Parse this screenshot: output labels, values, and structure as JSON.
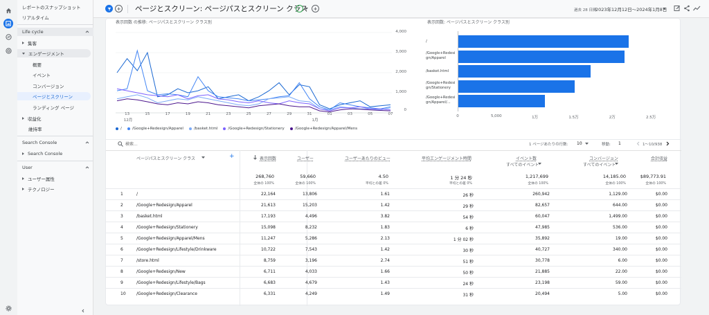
{
  "nav": {
    "top_items": [
      "レポートのスナップショット",
      "リアルタイム"
    ],
    "lifecycle_label": "Life cycle",
    "acquisition": "集客",
    "engagement": "エンゲージメント",
    "engagement_children": [
      "概要",
      "イベント",
      "コンバージョン",
      "ページとスクリーン",
      "ランディング ページ"
    ],
    "monetization": "収益化",
    "retention": "維持率",
    "search_console_section": "Search Console",
    "search_console_item": "Search Console",
    "user_section": "User",
    "user_attributes": "ユーザー属性",
    "technology": "テクノロジー"
  },
  "header": {
    "title": "ページとスクリーン: ページパスとスクリーン クラス",
    "date_prefix": "過去 28 日間",
    "date_range": "2023年12月12日～2024年1月8日"
  },
  "line_chart": {
    "title": "表示回数 の推移: ページパスとスクリーン クラス別",
    "y_ticks": [
      "4,000",
      "3,000",
      "2,000",
      "1,000",
      "0"
    ],
    "x_ticks": [
      "13",
      "15",
      "17",
      "19",
      "21",
      "23",
      "25",
      "27",
      "29",
      "31",
      "01",
      "03",
      "05",
      "07"
    ],
    "x_month_labels": [
      "12月",
      "1月"
    ],
    "legend": [
      "/",
      "/Google+Redesign/Apparel",
      "/basket.html",
      "/Google+Redesign/Stationery",
      "/Google+Redesign/Apparel/Mens"
    ],
    "colors": [
      "#1967d2",
      "#4285f4",
      "#7baaf7",
      "#7b61ff",
      "#4a148c"
    ]
  },
  "bar_chart": {
    "title": "表示回数: ページパスとスクリーン クラス別",
    "labels": [
      "/",
      "/Google+Redesi gn/Apparel",
      "/basket.html",
      "/Google+Redesi gn/Stationery",
      "/Google+Redesi gn/Apparel/..."
    ],
    "x_ticks": [
      "0",
      "5,000",
      "1万",
      "1.5万",
      "2万",
      "2.5万"
    ]
  },
  "chart_data": [
    {
      "type": "line",
      "title": "表示回数 の推移: ページパスとスクリーン クラス別",
      "ylim": [
        0,
        4000
      ],
      "x": [
        "12/12",
        "12/13",
        "12/14",
        "12/15",
        "12/16",
        "12/17",
        "12/18",
        "12/19",
        "12/20",
        "12/21",
        "12/22",
        "12/23",
        "12/24",
        "12/25",
        "12/26",
        "12/27",
        "12/28",
        "12/29",
        "12/30",
        "12/31",
        "1/1",
        "1/2",
        "1/3",
        "1/4",
        "1/5",
        "1/6",
        "1/7",
        "1/8"
      ],
      "series": [
        {
          "name": "/",
          "values": [
            2000,
            2700,
            2100,
            3000,
            800,
            900,
            1200,
            1000,
            1100,
            1300,
            700,
            800,
            900,
            600,
            800,
            1100,
            1500,
            900,
            1400,
            1300,
            400,
            200,
            400,
            500,
            600,
            300,
            350,
            400
          ]
        },
        {
          "name": "/Google+Redesign/Apparel",
          "values": [
            1100,
            1200,
            3100,
            1100,
            900,
            950,
            900,
            800,
            1800,
            1100,
            800,
            750,
            700,
            600,
            650,
            700,
            800,
            850,
            1500,
            700,
            300,
            150,
            500,
            400,
            300,
            250,
            200,
            300
          ]
        },
        {
          "name": "/basket.html",
          "values": [
            700,
            800,
            900,
            750,
            500,
            600,
            700,
            650,
            800,
            700,
            600,
            500,
            400,
            350,
            450,
            700,
            750,
            800,
            600,
            550,
            200,
            150,
            300,
            250,
            200,
            200,
            150,
            250
          ]
        },
        {
          "name": "/Google+Redesign/Stationery",
          "values": [
            1200,
            1100,
            1000,
            900,
            850,
            800,
            900,
            700,
            850,
            900,
            700,
            650,
            550,
            500,
            600,
            500,
            450,
            600,
            500,
            450,
            200,
            100,
            250,
            250,
            300,
            200,
            200,
            150
          ]
        },
        {
          "name": "/Google+Redesign/Apparel/Mens",
          "values": [
            600,
            700,
            650,
            550,
            450,
            400,
            500,
            450,
            550,
            500,
            400,
            350,
            300,
            250,
            350,
            400,
            450,
            350,
            300,
            300,
            100,
            50,
            150,
            200,
            180,
            150,
            120,
            100
          ]
        }
      ]
    },
    {
      "type": "bar",
      "title": "表示回数: ページパスとスクリーン クラス別",
      "categories": [
        "/",
        "/Google+Redesign/Apparel",
        "/basket.html",
        "/Google+Redesign/Stationery",
        "/Google+Redesign/Apparel/Mens"
      ],
      "values": [
        22164,
        21613,
        17193,
        15098,
        11247
      ],
      "xlim": [
        0,
        27500
      ]
    }
  ],
  "table": {
    "search_placeholder": "検索...",
    "rows_per_page_label": "1 ページあたりの行数:",
    "rows_per_page": "10",
    "goto_label": "移動:",
    "goto_value": "1",
    "page_range": "1～10/938",
    "dim_header": "ページパスとスクリーン クラス",
    "headers": [
      "表示回数",
      "ユーザー",
      "ユーザーあたりのビュー",
      "平均エンゲージメント時間",
      "イベント数",
      "コンバージョン",
      "合計収益"
    ],
    "header_subs": [
      "",
      "",
      "",
      "",
      "すべてのイベント",
      "すべてのイベント",
      ""
    ],
    "totals": [
      "268,760",
      "59,660",
      "4.50",
      "1 分 24 秒",
      "1,217,699",
      "14,185.00",
      "$89,773.91"
    ],
    "totals_sub": [
      "全体の 100%",
      "全体の 100%",
      "平均との差 0%",
      "平均との差 0%",
      "全体の 100%",
      "全体の 100%",
      "全体の 100%"
    ],
    "rows": [
      {
        "i": "1",
        "path": "/",
        "views": "22,164",
        "users": "13,806",
        "vpu": "1.61",
        "time": "26 秒",
        "events": "260,942",
        "conv": "1,129.00",
        "rev": "$0.00"
      },
      {
        "i": "2",
        "path": "/Google+Redesign/Apparel",
        "views": "21,613",
        "users": "15,203",
        "vpu": "1.42",
        "time": "29 秒",
        "events": "82,657",
        "conv": "644.00",
        "rev": "$0.00"
      },
      {
        "i": "3",
        "path": "/basket.html",
        "views": "17,193",
        "users": "4,496",
        "vpu": "3.82",
        "time": "54 秒",
        "events": "60,047",
        "conv": "1,499.00",
        "rev": "$0.00"
      },
      {
        "i": "4",
        "path": "/Google+Redesign/Stationery",
        "views": "15,098",
        "users": "8,232",
        "vpu": "1.83",
        "time": "6 秒",
        "events": "47,985",
        "conv": "536.00",
        "rev": "$0.00"
      },
      {
        "i": "5",
        "path": "/Google+Redesign/Apparel/Mens",
        "views": "11,247",
        "users": "5,286",
        "vpu": "2.13",
        "time": "1 分 02 秒",
        "events": "35,892",
        "conv": "19.00",
        "rev": "$0.00"
      },
      {
        "i": "6",
        "path": "/Google+Redesign/Lifestyle/Drinkware",
        "views": "10,722",
        "users": "7,543",
        "vpu": "1.42",
        "time": "30 秒",
        "events": "40,727",
        "conv": "340.00",
        "rev": "$0.00"
      },
      {
        "i": "7",
        "path": "/store.html",
        "views": "8,759",
        "users": "3,196",
        "vpu": "2.74",
        "time": "51 秒",
        "events": "30,778",
        "conv": "6.00",
        "rev": "$0.00"
      },
      {
        "i": "8",
        "path": "/Google+Redesign/New",
        "views": "6,711",
        "users": "4,033",
        "vpu": "1.66",
        "time": "50 秒",
        "events": "21,885",
        "conv": "22.00",
        "rev": "$0.00"
      },
      {
        "i": "9",
        "path": "/Google+Redesign/Lifestyle/Bags",
        "views": "6,683",
        "users": "4,679",
        "vpu": "1.43",
        "time": "24 秒",
        "events": "23,198",
        "conv": "59.00",
        "rev": "$0.00"
      },
      {
        "i": "10",
        "path": "/Google+Redesign/Clearance",
        "views": "6,331",
        "users": "4,249",
        "vpu": "1.49",
        "time": "31 秒",
        "events": "20,494",
        "conv": "5.00",
        "rev": "$0.00"
      }
    ]
  }
}
